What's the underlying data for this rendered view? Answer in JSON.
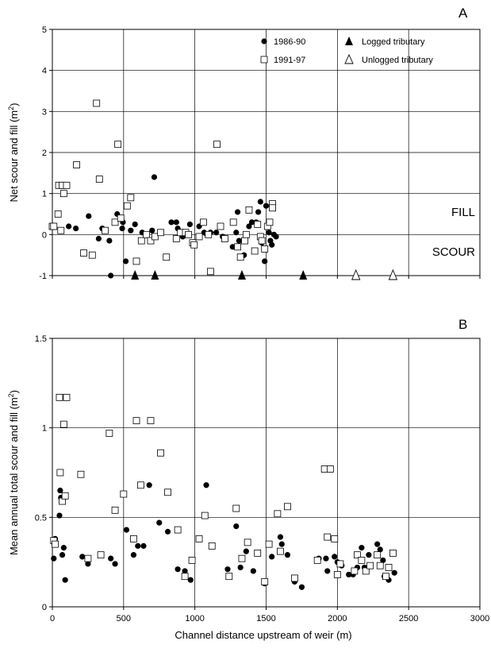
{
  "xlabel": "Channel distance upstream of weir (m)",
  "legend": {
    "series_1986": "1986-90",
    "series_1991": "1991-97",
    "logged": "Logged tributary",
    "unlogged": "Unlogged tributary"
  },
  "chart_data": [
    {
      "type": "scatter",
      "panel_label": "A",
      "ylabel": "Net scour and fill (m",
      "ylabel_sup": "2",
      "ylabel_end": ")",
      "xlim": [
        0,
        3000
      ],
      "ylim": [
        -1,
        5
      ],
      "xticks": [
        "0",
        "500",
        "1000",
        "1500",
        "2000",
        "2500",
        "3000"
      ],
      "yticks": [
        "-1",
        "0",
        "1",
        "2",
        "3",
        "4",
        "5"
      ],
      "grid": true,
      "annotations": [
        "FILL",
        "SCOUR"
      ],
      "series": [
        {
          "name": "1986-90",
          "marker": "filled-circle",
          "points": [
            [
              115,
              0.2
            ],
            [
              165,
              0.15
            ],
            [
              255,
              0.45
            ],
            [
              325,
              -0.1
            ],
            [
              350,
              0.15
            ],
            [
              400,
              -0.15
            ],
            [
              410,
              -1.0
            ],
            [
              455,
              0.5
            ],
            [
              490,
              0.15
            ],
            [
              495,
              0.3
            ],
            [
              515,
              -0.65
            ],
            [
              550,
              0.1
            ],
            [
              580,
              0.25
            ],
            [
              630,
              0.05
            ],
            [
              700,
              0.1
            ],
            [
              715,
              1.4
            ],
            [
              835,
              0.3
            ],
            [
              870,
              0.3
            ],
            [
              880,
              0.15
            ],
            [
              915,
              -0.05
            ],
            [
              965,
              0.25
            ],
            [
              1030,
              0.2
            ],
            [
              1065,
              0.05
            ],
            [
              1085,
              0.0
            ],
            [
              1110,
              0.05
            ],
            [
              1150,
              0.05
            ],
            [
              1195,
              -0.05
            ],
            [
              1265,
              -0.3
            ],
            [
              1290,
              0.05
            ],
            [
              1300,
              0.55
            ],
            [
              1310,
              -0.15
            ],
            [
              1345,
              -0.5
            ],
            [
              1380,
              0.2
            ],
            [
              1400,
              0.3
            ],
            [
              1430,
              0.3
            ],
            [
              1445,
              0.55
            ],
            [
              1460,
              0.8
            ],
            [
              1470,
              -0.2
            ],
            [
              1490,
              -0.65
            ],
            [
              1500,
              0.7
            ],
            [
              1520,
              0.05
            ],
            [
              1530,
              -0.15
            ],
            [
              1540,
              -0.25
            ],
            [
              1555,
              0.0
            ],
            [
              1570,
              -0.05
            ]
          ]
        },
        {
          "name": "1991-97",
          "marker": "open-square",
          "points": [
            [
              0,
              0.2
            ],
            [
              10,
              0.2
            ],
            [
              40,
              0.5
            ],
            [
              45,
              1.2
            ],
            [
              60,
              0.1
            ],
            [
              70,
              1.2
            ],
            [
              80,
              1.0
            ],
            [
              100,
              1.2
            ],
            [
              170,
              1.7
            ],
            [
              220,
              -0.45
            ],
            [
              280,
              -0.5
            ],
            [
              310,
              3.2
            ],
            [
              330,
              1.35
            ],
            [
              370,
              0.1
            ],
            [
              440,
              0.3
            ],
            [
              460,
              2.2
            ],
            [
              480,
              0.4
            ],
            [
              525,
              0.7
            ],
            [
              550,
              0.9
            ],
            [
              590,
              -0.65
            ],
            [
              625,
              -0.15
            ],
            [
              660,
              0.0
            ],
            [
              690,
              -0.15
            ],
            [
              720,
              -0.05
            ],
            [
              760,
              0.05
            ],
            [
              800,
              -0.55
            ],
            [
              870,
              -0.1
            ],
            [
              900,
              0.05
            ],
            [
              935,
              0.05
            ],
            [
              955,
              0.0
            ],
            [
              985,
              -0.2
            ],
            [
              995,
              -0.25
            ],
            [
              1030,
              -0.05
            ],
            [
              1060,
              0.3
            ],
            [
              1095,
              0.0
            ],
            [
              1110,
              -0.9
            ],
            [
              1155,
              2.2
            ],
            [
              1180,
              0.2
            ],
            [
              1210,
              -0.1
            ],
            [
              1270,
              0.3
            ],
            [
              1300,
              -0.3
            ],
            [
              1320,
              -0.55
            ],
            [
              1350,
              -0.15
            ],
            [
              1360,
              0.0
            ],
            [
              1380,
              0.6
            ],
            [
              1420,
              -0.4
            ],
            [
              1440,
              0.25
            ],
            [
              1460,
              -0.05
            ],
            [
              1470,
              -0.15
            ],
            [
              1490,
              -0.35
            ],
            [
              1510,
              0.2
            ],
            [
              1525,
              0.3
            ],
            [
              1545,
              0.75
            ],
            [
              1545,
              0.65
            ]
          ]
        }
      ],
      "tributaries": {
        "logged": [
          580,
          720,
          1330,
          1760
        ],
        "unlogged": [
          2130,
          2390
        ]
      }
    },
    {
      "type": "scatter",
      "panel_label": "B",
      "ylabel": "Mean annual total scour and fill (m",
      "ylabel_sup": "2",
      "ylabel_end": ")",
      "xlim": [
        0,
        3000
      ],
      "ylim": [
        0,
        1.5
      ],
      "xticks": [
        "0",
        "500",
        "1000",
        "1500",
        "2000",
        "2500",
        "3000"
      ],
      "yticks": [
        "0",
        "0.5",
        "1",
        "1.5"
      ],
      "grid": true,
      "series": [
        {
          "name": "1986-90",
          "marker": "filled-circle",
          "points": [
            [
              10,
              0.27
            ],
            [
              20,
              0.38
            ],
            [
              50,
              0.51
            ],
            [
              55,
              0.65
            ],
            [
              60,
              0.61
            ],
            [
              70,
              0.29
            ],
            [
              80,
              0.33
            ],
            [
              90,
              0.15
            ],
            [
              210,
              0.28
            ],
            [
              250,
              0.24
            ],
            [
              340,
              0.29
            ],
            [
              410,
              0.27
            ],
            [
              440,
              0.24
            ],
            [
              520,
              0.43
            ],
            [
              570,
              0.29
            ],
            [
              600,
              0.34
            ],
            [
              640,
              0.34
            ],
            [
              680,
              0.68
            ],
            [
              750,
              0.47
            ],
            [
              810,
              0.42
            ],
            [
              880,
              0.21
            ],
            [
              930,
              0.2
            ],
            [
              970,
              0.15
            ],
            [
              1080,
              0.68
            ],
            [
              1230,
              0.21
            ],
            [
              1290,
              0.45
            ],
            [
              1320,
              0.22
            ],
            [
              1360,
              0.31
            ],
            [
              1410,
              0.2
            ],
            [
              1490,
              0.13
            ],
            [
              1540,
              0.28
            ],
            [
              1600,
              0.39
            ],
            [
              1610,
              0.35
            ],
            [
              1650,
              0.29
            ],
            [
              1700,
              0.14
            ],
            [
              1750,
              0.11
            ],
            [
              1870,
              0.27
            ],
            [
              1920,
              0.27
            ],
            [
              1930,
              0.2
            ],
            [
              1980,
              0.28
            ],
            [
              2000,
              0.25
            ],
            [
              2030,
              0.23
            ],
            [
              2080,
              0.18
            ],
            [
              2110,
              0.18
            ],
            [
              2140,
              0.22
            ],
            [
              2170,
              0.33
            ],
            [
              2190,
              0.22
            ],
            [
              2220,
              0.29
            ],
            [
              2280,
              0.35
            ],
            [
              2300,
              0.32
            ],
            [
              2320,
              0.26
            ],
            [
              2330,
              0.17
            ],
            [
              2360,
              0.15
            ],
            [
              2400,
              0.19
            ]
          ]
        },
        {
          "name": "1991-97",
          "marker": "open-square",
          "points": [
            [
              10,
              0.37
            ],
            [
              20,
              0.35
            ],
            [
              50,
              1.17
            ],
            [
              55,
              0.75
            ],
            [
              70,
              0.59
            ],
            [
              80,
              1.02
            ],
            [
              90,
              0.62
            ],
            [
              100,
              1.17
            ],
            [
              200,
              0.74
            ],
            [
              250,
              0.27
            ],
            [
              340,
              0.29
            ],
            [
              400,
              0.97
            ],
            [
              440,
              0.54
            ],
            [
              500,
              0.63
            ],
            [
              570,
              0.38
            ],
            [
              590,
              1.04
            ],
            [
              620,
              0.68
            ],
            [
              690,
              1.04
            ],
            [
              760,
              0.86
            ],
            [
              810,
              0.64
            ],
            [
              880,
              0.43
            ],
            [
              930,
              0.17
            ],
            [
              980,
              0.26
            ],
            [
              1030,
              0.38
            ],
            [
              1070,
              0.51
            ],
            [
              1120,
              0.34
            ],
            [
              1240,
              0.17
            ],
            [
              1290,
              0.55
            ],
            [
              1330,
              0.27
            ],
            [
              1370,
              0.36
            ],
            [
              1440,
              0.3
            ],
            [
              1490,
              0.14
            ],
            [
              1520,
              0.35
            ],
            [
              1580,
              0.52
            ],
            [
              1600,
              0.31
            ],
            [
              1650,
              0.56
            ],
            [
              1700,
              0.16
            ],
            [
              1860,
              0.26
            ],
            [
              1910,
              0.77
            ],
            [
              1930,
              0.39
            ],
            [
              1950,
              0.77
            ],
            [
              1980,
              0.38
            ],
            [
              2000,
              0.18
            ],
            [
              2020,
              0.24
            ],
            [
              2120,
              0.2
            ],
            [
              2140,
              0.29
            ],
            [
              2170,
              0.26
            ],
            [
              2200,
              0.2
            ],
            [
              2230,
              0.23
            ],
            [
              2280,
              0.29
            ],
            [
              2300,
              0.23
            ],
            [
              2340,
              0.17
            ],
            [
              2360,
              0.22
            ],
            [
              2390,
              0.3
            ]
          ]
        }
      ]
    }
  ]
}
